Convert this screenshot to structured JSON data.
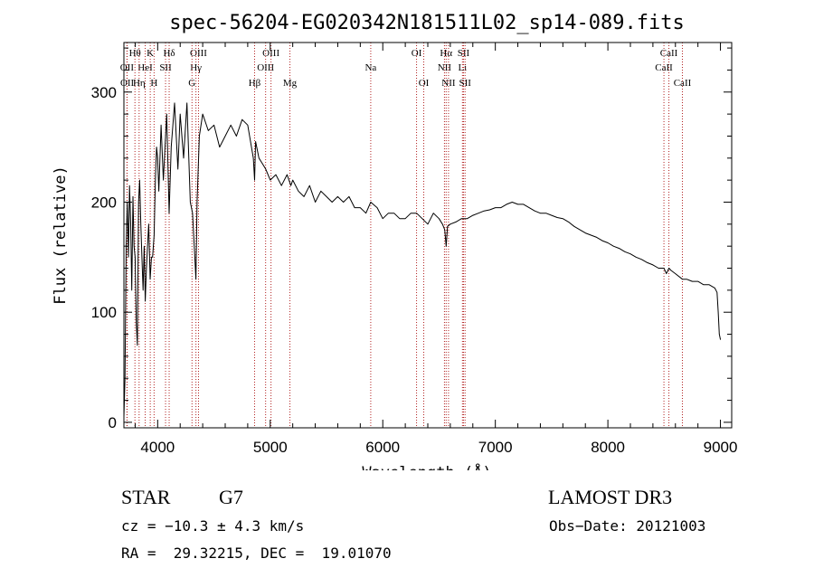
{
  "chart_data": {
    "type": "line",
    "title": "spec-56204-EG020342N181511L02_sp14-089.fits",
    "xlabel": "Wavelength (Å)",
    "ylabel": "Flux (relative)",
    "xlim": [
      3700,
      9100
    ],
    "ylim": [
      -5,
      345
    ],
    "xticks": [
      4000,
      5000,
      6000,
      7000,
      8000,
      9000
    ],
    "yticks": [
      0,
      100,
      200,
      300
    ],
    "grid": false,
    "series": [
      {
        "name": "flux",
        "x": [
          3700,
          3710,
          3720,
          3730,
          3740,
          3750,
          3760,
          3770,
          3780,
          3790,
          3800,
          3810,
          3820,
          3830,
          3840,
          3850,
          3860,
          3870,
          3880,
          3890,
          3900,
          3910,
          3920,
          3933,
          3945,
          3955,
          3968,
          3980,
          3990,
          4000,
          4010,
          4030,
          4050,
          4080,
          4102,
          4120,
          4150,
          4180,
          4200,
          4230,
          4260,
          4290,
          4310,
          4330,
          4340,
          4350,
          4370,
          4400,
          4450,
          4500,
          4550,
          4600,
          4650,
          4700,
          4750,
          4800,
          4850,
          4861,
          4870,
          4900,
          4930,
          4960,
          5000,
          5050,
          5100,
          5150,
          5183,
          5200,
          5250,
          5300,
          5350,
          5400,
          5450,
          5500,
          5550,
          5600,
          5650,
          5700,
          5750,
          5800,
          5850,
          5893,
          5950,
          6000,
          6050,
          6100,
          6150,
          6200,
          6250,
          6300,
          6350,
          6400,
          6450,
          6500,
          6530,
          6550,
          6563,
          6575,
          6600,
          6650,
          6700,
          6750,
          6800,
          6850,
          6900,
          6950,
          7000,
          7050,
          7100,
          7150,
          7200,
          7250,
          7300,
          7350,
          7400,
          7450,
          7500,
          7550,
          7600,
          7650,
          7700,
          7750,
          7800,
          7850,
          7900,
          7950,
          8000,
          8050,
          8100,
          8150,
          8200,
          8250,
          8300,
          8350,
          8400,
          8450,
          8498,
          8520,
          8542,
          8560,
          8600,
          8662,
          8700,
          8750,
          8800,
          8850,
          8900,
          8950,
          8970,
          8980,
          8990,
          9000
        ],
        "values": [
          5,
          40,
          160,
          200,
          150,
          215,
          180,
          120,
          205,
          160,
          150,
          90,
          70,
          200,
          220,
          180,
          150,
          120,
          160,
          110,
          140,
          160,
          180,
          130,
          150,
          150,
          170,
          220,
          250,
          240,
          210,
          270,
          220,
          280,
          190,
          250,
          290,
          230,
          280,
          240,
          290,
          200,
          190,
          150,
          130,
          200,
          260,
          280,
          265,
          270,
          250,
          260,
          270,
          260,
          275,
          270,
          240,
          220,
          255,
          240,
          235,
          230,
          220,
          225,
          215,
          225,
          215,
          220,
          210,
          205,
          215,
          200,
          210,
          205,
          200,
          205,
          200,
          205,
          195,
          195,
          190,
          200,
          195,
          185,
          190,
          190,
          185,
          185,
          190,
          190,
          185,
          180,
          190,
          185,
          180,
          175,
          160,
          178,
          180,
          182,
          185,
          185,
          188,
          190,
          192,
          193,
          195,
          195,
          198,
          200,
          198,
          198,
          195,
          192,
          190,
          190,
          188,
          186,
          185,
          182,
          178,
          175,
          172,
          170,
          168,
          165,
          163,
          160,
          158,
          155,
          153,
          150,
          148,
          145,
          143,
          140,
          140,
          135,
          140,
          138,
          135,
          130,
          130,
          128,
          128,
          125,
          125,
          122,
          118,
          100,
          80,
          75
        ]
      }
    ],
    "spectral_lines": [
      {
        "label": "Hθ",
        "wavelength": 3798,
        "row": 0
      },
      {
        "label": "OII",
        "wavelength": 3727,
        "row": 1
      },
      {
        "label": "OII",
        "wavelength": 3729,
        "row": 2
      },
      {
        "label": "HeI",
        "wavelength": 3889,
        "row": 1
      },
      {
        "label": "Hη",
        "wavelength": 3835,
        "row": 2
      },
      {
        "label": "K",
        "wavelength": 3934,
        "row": 0
      },
      {
        "label": "SII",
        "wavelength": 4070,
        "row": 1
      },
      {
        "label": "H",
        "wavelength": 3968,
        "row": 2
      },
      {
        "label": "Hδ",
        "wavelength": 4102,
        "row": 0
      },
      {
        "label": "OIII",
        "wavelength": 4363,
        "row": 0
      },
      {
        "label": "Hγ",
        "wavelength": 4340,
        "row": 1
      },
      {
        "label": "G",
        "wavelength": 4305,
        "row": 2
      },
      {
        "label": "Hβ",
        "wavelength": 4861,
        "row": 2
      },
      {
        "label": "OIII",
        "wavelength": 5007,
        "row": 0
      },
      {
        "label": "OIII",
        "wavelength": 4959,
        "row": 1
      },
      {
        "label": "Mg",
        "wavelength": 5175,
        "row": 2
      },
      {
        "label": "Na",
        "wavelength": 5893,
        "row": 1
      },
      {
        "label": "OI",
        "wavelength": 6300,
        "row": 0
      },
      {
        "label": "OI",
        "wavelength": 6364,
        "row": 2
      },
      {
        "label": "Hα",
        "wavelength": 6563,
        "row": 0
      },
      {
        "label": "SII",
        "wavelength": 6717,
        "row": 0
      },
      {
        "label": "NII",
        "wavelength": 6548,
        "row": 1
      },
      {
        "label": "Li",
        "wavelength": 6708,
        "row": 1
      },
      {
        "label": "NII",
        "wavelength": 6584,
        "row": 2
      },
      {
        "label": "SII",
        "wavelength": 6731,
        "row": 2
      },
      {
        "label": "CaII",
        "wavelength": 8542,
        "row": 0
      },
      {
        "label": "CaII",
        "wavelength": 8498,
        "row": 1
      },
      {
        "label": "CaII",
        "wavelength": 8662,
        "row": 2
      }
    ]
  },
  "info": {
    "object_class": "STAR",
    "subclass": "G7",
    "survey": "LAMOST DR3",
    "redshift": "cz = −10.3 ± 4.3 km/s",
    "obs_date": "Obs−Date: 20121003",
    "coords": "RA =  29.32215, DEC =  19.01070"
  },
  "colors": {
    "line": "#000000",
    "marker_lines": "#b22222",
    "text": "#000000"
  }
}
